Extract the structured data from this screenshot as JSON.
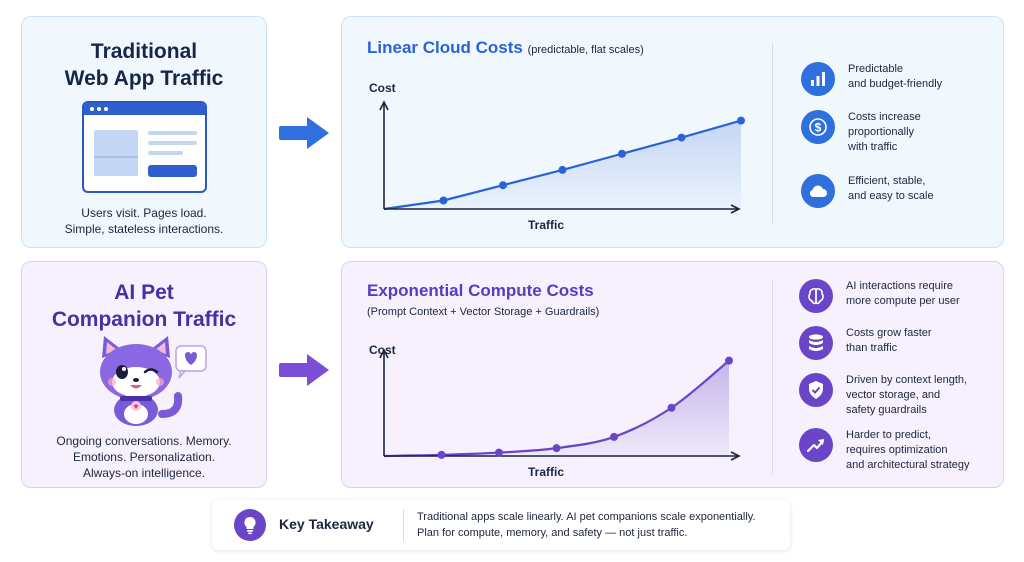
{
  "traditional": {
    "title_lines": [
      "Traditional",
      "Web App Traffic"
    ],
    "desc_lines": [
      "Users visit. Pages load.",
      "Simple, stateless interactions."
    ]
  },
  "ai_pet": {
    "title_lines": [
      "AI Pet",
      "Companion Traffic"
    ],
    "desc_lines": [
      "Ongoing conversations. Memory.",
      "Emotions. Personalization.",
      "Always-on intelligence."
    ]
  },
  "linear_panel": {
    "title": "Linear Cloud Costs",
    "subtitle": "(predictable, flat scales)",
    "features": [
      {
        "icon": "bar-chart-icon",
        "lines": [
          "Predictable",
          "and budget-friendly"
        ]
      },
      {
        "icon": "dollar-coin-icon",
        "lines": [
          "Costs increase",
          "proportionally",
          "with traffic"
        ]
      },
      {
        "icon": "cloud-icon",
        "lines": [
          "Efficient, stable,",
          "and easy to scale"
        ]
      }
    ]
  },
  "exponential_panel": {
    "title": "Exponential Compute Costs",
    "subtitle": "(Prompt Context + Vector Storage + Guardrails)",
    "features": [
      {
        "icon": "brain-icon",
        "lines": [
          "AI interactions require",
          "more compute per user"
        ]
      },
      {
        "icon": "database-icon",
        "lines": [
          "Costs grow faster",
          "than traffic"
        ]
      },
      {
        "icon": "shield-check-icon",
        "lines": [
          "Driven by context length,",
          "vector storage, and",
          "safety guardrails"
        ]
      },
      {
        "icon": "trend-up-icon",
        "lines": [
          "Harder to predict,",
          "requires optimization",
          "and architectural strategy"
        ]
      }
    ]
  },
  "takeaway": {
    "label": "Key Takeaway",
    "lines": [
      "Traditional apps scale linearly. AI pet companions scale exponentially.",
      "Plan for compute, memory, and safety — not just traffic."
    ]
  },
  "chart_data": [
    {
      "type": "line",
      "xlabel": "Traffic",
      "ylabel": "Cost",
      "x": [
        0,
        1,
        2,
        3,
        4,
        5,
        6
      ],
      "values": [
        0,
        0.5,
        1.4,
        2.3,
        3.25,
        4.2,
        5.2
      ],
      "ylim": [
        0,
        6
      ],
      "color": "#2a63d4"
    },
    {
      "type": "area",
      "xlabel": "Traffic",
      "ylabel": "Cost",
      "x": [
        0,
        1,
        2,
        3,
        4,
        5,
        6
      ],
      "values": [
        0,
        0.1,
        0.3,
        0.7,
        1.7,
        4.3,
        8.5
      ],
      "ylim": [
        0,
        9
      ],
      "color": "#6a45c8"
    }
  ],
  "colors": {
    "blue": "#2a63d4",
    "purple": "#6a45c8",
    "navy": "#18254a"
  }
}
